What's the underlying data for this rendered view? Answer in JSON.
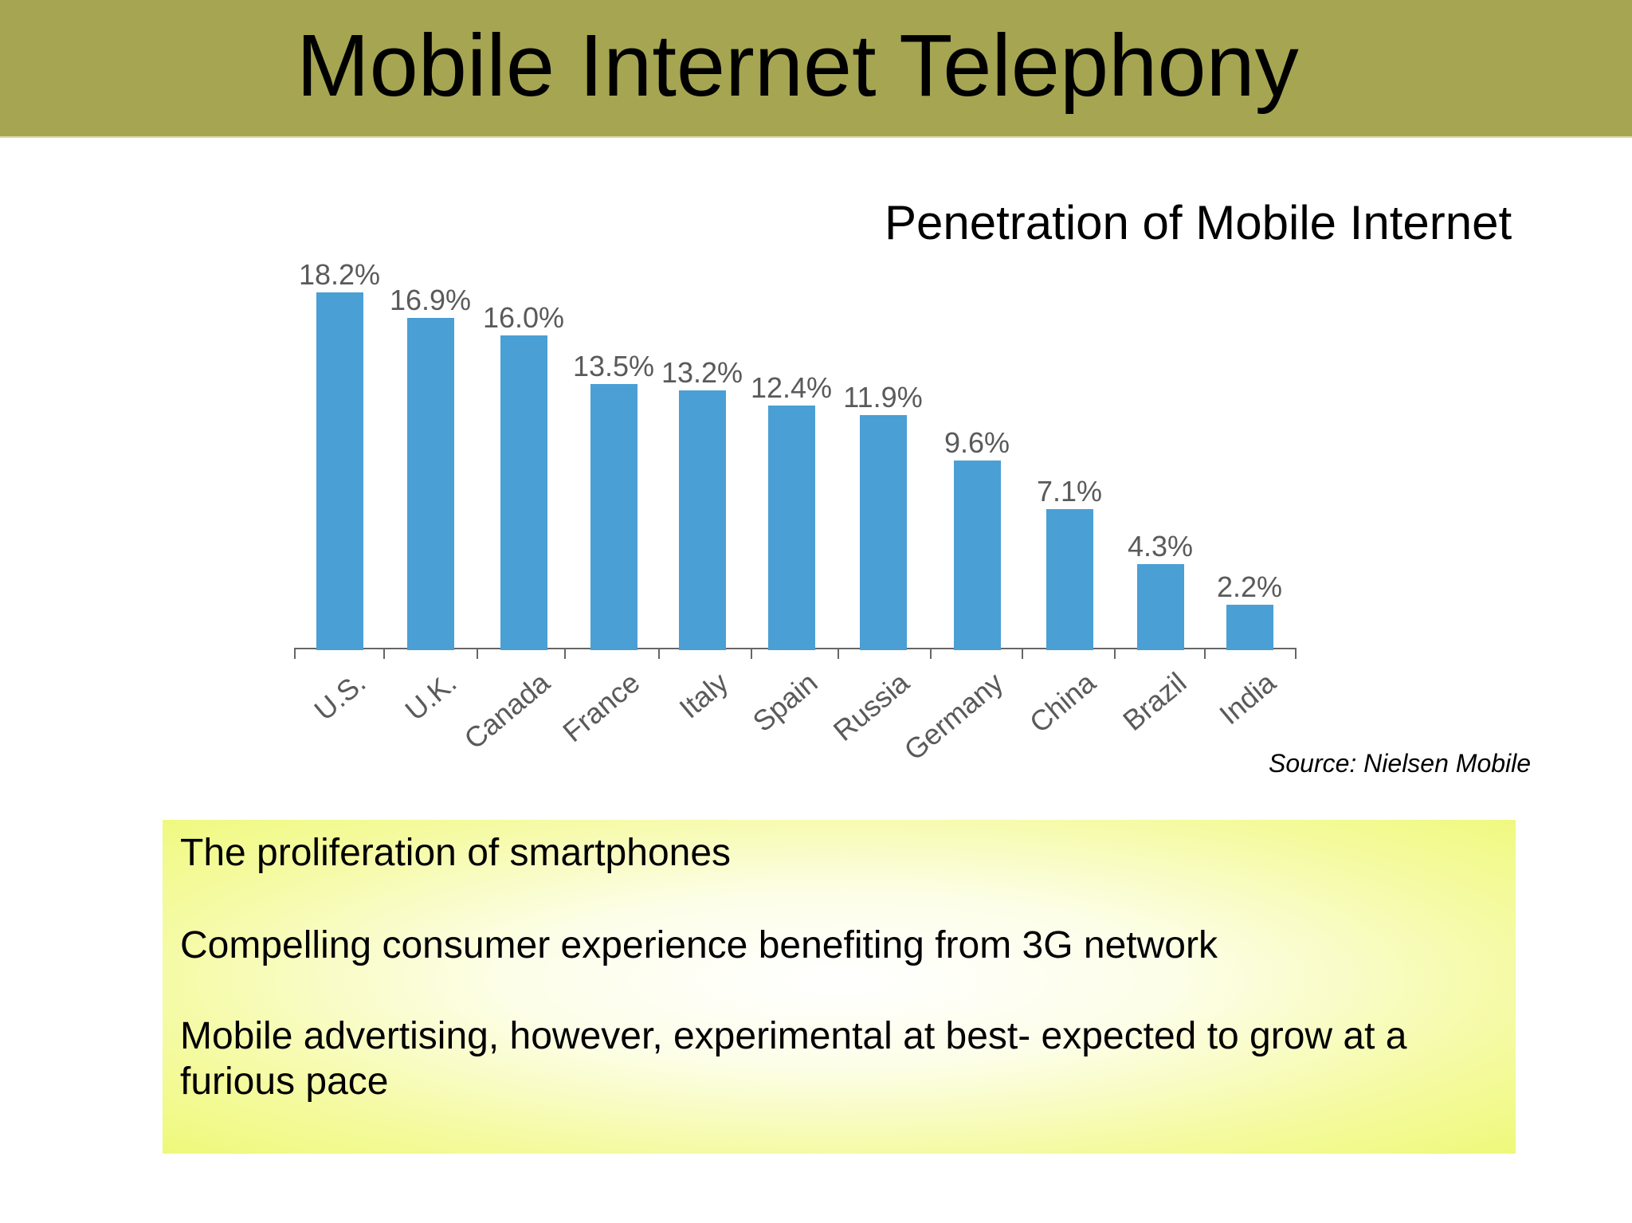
{
  "header": {
    "title": "Mobile Internet Telephony",
    "background_color": "#a6a552"
  },
  "chart": {
    "title": "Penetration of Mobile Internet",
    "source": "Source: Nielsen Mobile",
    "bar_color": "#4a9fd5",
    "value_labels": [
      "18.2%",
      "16.9%",
      "16.0%",
      "13.5%",
      "13.2%",
      "12.4%",
      "11.9%",
      "9.6%",
      "7.1%",
      "4.3%",
      "2.2%"
    ],
    "category_labels": [
      "U.S.",
      "U.K.",
      "Canada",
      "France",
      "Italy",
      "Spain",
      "Russia",
      "Germany",
      "China",
      "Brazil",
      "India"
    ]
  },
  "chart_data": {
    "type": "bar",
    "title": "Penetration of Mobile Internet",
    "categories": [
      "U.S.",
      "U.K.",
      "Canada",
      "France",
      "Italy",
      "Spain",
      "Russia",
      "Germany",
      "China",
      "Brazil",
      "India"
    ],
    "values": [
      18.2,
      16.9,
      16.0,
      13.5,
      13.2,
      12.4,
      11.9,
      9.6,
      7.1,
      4.3,
      2.2
    ],
    "value_format": "percent",
    "xlabel": "",
    "ylabel": "",
    "ylim": [
      0,
      20
    ],
    "grid": false,
    "legend": null,
    "x_tick_rotation": -40,
    "source": "Source: Nielsen Mobile"
  },
  "notes": {
    "items": [
      "The proliferation of smartphones",
      "Compelling consumer experience benefiting from 3G network",
      "Mobile advertising, however, experimental at best- expected to grow at a furious pace"
    ],
    "box_edge_color": "#eef97a"
  }
}
